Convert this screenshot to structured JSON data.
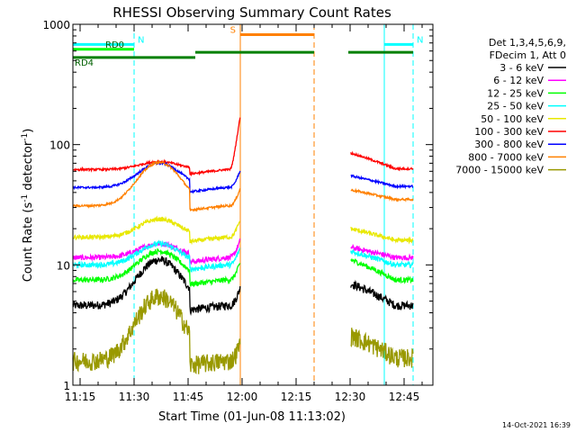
{
  "chart_data": {
    "type": "line",
    "title": "RHESSI Observing Summary Count Rates",
    "xlabel": "Start Time (01-Jun-08 11:13:02)",
    "ylabel_main": "Count Rate (s",
    "ylabel_sup1": "-1",
    "ylabel_mid": " detector",
    "ylabel_sup2": "-1",
    "ylabel_end": ")",
    "x_range_min": [
      673,
      773
    ],
    "y_scale": "log",
    "ylim": [
      1,
      1000
    ],
    "y_ticks": [
      {
        "value": 1,
        "label": "1"
      },
      {
        "value": 10,
        "label": "10"
      },
      {
        "value": 100,
        "label": "100"
      },
      {
        "value": 1000,
        "label": "1000"
      }
    ],
    "x_ticks": [
      {
        "min": 675,
        "label": "11:15"
      },
      {
        "min": 690,
        "label": "11:30"
      },
      {
        "min": 705,
        "label": "11:45"
      },
      {
        "min": 720,
        "label": "12:00"
      },
      {
        "min": 735,
        "label": "12:15"
      },
      {
        "min": 750,
        "label": "12:30"
      },
      {
        "min": 765,
        "label": "12:45"
      }
    ],
    "legend_header": [
      "Det 1,3,4,5,6,9,",
      "FDecim 1, Att 0"
    ],
    "legend_position": "right",
    "series": [
      {
        "name": "3 - 6 keV",
        "color": "#000000",
        "pre_base": 4.6,
        "peak": 11,
        "noise": 0.08,
        "post_a": 7,
        "post_b": 4.6
      },
      {
        "name": "6 - 12 keV",
        "color": "#ff00ff",
        "pre_base": 11.5,
        "peak": 15,
        "noise": 0.05,
        "post_a": 14,
        "post_b": 11.5
      },
      {
        "name": "12 - 25 keV",
        "color": "#00ff00",
        "pre_base": 7.5,
        "peak": 13,
        "noise": 0.05,
        "post_a": 11,
        "post_b": 7.5
      },
      {
        "name": "25 - 50 keV",
        "color": "#00ffff",
        "pre_base": 10,
        "peak": 15,
        "noise": 0.05,
        "post_a": 13,
        "post_b": 10
      },
      {
        "name": "50 - 100 keV",
        "color": "#e8e800",
        "pre_base": 17,
        "peak": 24,
        "noise": 0.04,
        "post_a": 20,
        "post_b": 16
      },
      {
        "name": "100 - 300 keV",
        "color": "#ff0000",
        "pre_base": 62,
        "peak": 72,
        "noise": 0.02,
        "post_a": 85,
        "post_b": 63
      },
      {
        "name": "300 - 800 keV",
        "color": "#0000ff",
        "pre_base": 44,
        "peak": 70,
        "noise": 0.02,
        "post_a": 55,
        "post_b": 45
      },
      {
        "name": "800 - 7000 keV",
        "color": "#ff8000",
        "pre_base": 31,
        "peak": 71,
        "noise": 0.02,
        "post_a": 42,
        "post_b": 35
      },
      {
        "name": "7000 - 15000 keV",
        "color": "#999900",
        "pre_base": 1.6,
        "peak": 5.5,
        "noise": 0.18,
        "post_a": 2.6,
        "post_b": 1.7
      }
    ],
    "segments": {
      "data_a_start": 673,
      "data_a_end": 719.5,
      "data_b_start": 750.2,
      "data_b_end": 767.5
    },
    "flags": [
      {
        "label": "N",
        "color": "#00ffff",
        "start": 673,
        "end": 690,
        "value": 680
      },
      {
        "label": "N",
        "color": "#00ffff",
        "start": 759.5,
        "end": 767.5,
        "value": 680
      },
      {
        "label": "RD0",
        "color": "#00ff00",
        "start": 673,
        "end": 690,
        "value": 620
      },
      {
        "label": "RD4",
        "color": "#008000",
        "start": 673,
        "end": 707,
        "value": 530
      },
      {
        "label": "",
        "color": "#008000",
        "start": 707,
        "end": 740,
        "value": 585
      },
      {
        "label": "",
        "color": "#008000",
        "start": 749.5,
        "end": 767.5,
        "value": 585
      },
      {
        "label": "S",
        "color": "#ff8000",
        "start": 719.5,
        "end": 740,
        "value": 820
      }
    ],
    "event_lines": [
      {
        "min": 673,
        "color": "#00ffff",
        "style": "solid"
      },
      {
        "min": 690,
        "color": "#00ffff",
        "style": "dash"
      },
      {
        "min": 759.5,
        "color": "#00ffff",
        "style": "solid"
      },
      {
        "min": 767.5,
        "color": "#00ffff",
        "style": "dash"
      },
      {
        "min": 719.5,
        "color": "#ff8000",
        "style": "solid"
      },
      {
        "min": 740,
        "color": "#ff8000",
        "style": "dash"
      }
    ],
    "timestamp": "14-Oct-2021 16:39"
  }
}
